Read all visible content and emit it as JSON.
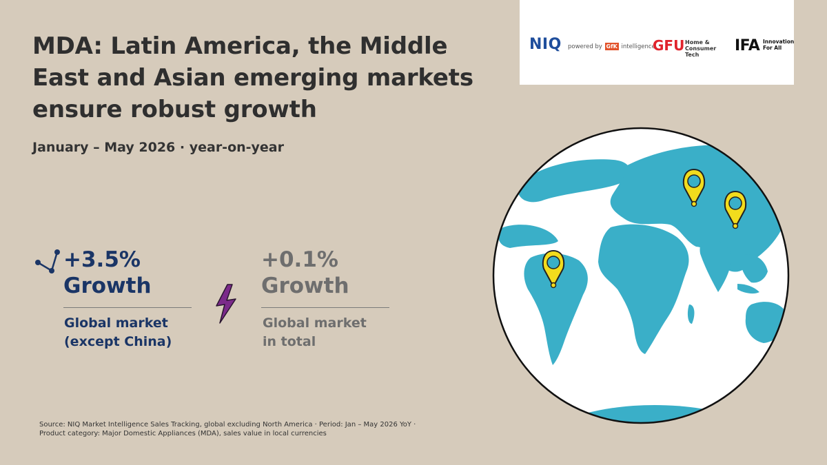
{
  "title": "MDA: Latin America, the Middle East and Asian emerging markets ensure robust growth",
  "subtitle": "January – May 2026 · year-on-year",
  "logos": {
    "niq": "NIQ",
    "niq_powered": "powered by",
    "gfk": "GfK",
    "niq_intelligence": "intelligence",
    "gfu": "GFU",
    "gfu_sub_1": "Home &",
    "gfu_sub_2": "Consumer Tech",
    "ifa": "IFA",
    "ifa_sub_1": "Innovation",
    "ifa_sub_2": "For All"
  },
  "stats": [
    {
      "value": "+3.5%",
      "word": "Growth",
      "label_1": "Global market",
      "label_2": "(except China)",
      "color": "#1a3566"
    },
    {
      "value": "+0.1%",
      "word": "Growth",
      "label_1": "Global market",
      "label_2": "in total",
      "color": "#6e6e6e"
    }
  ],
  "icons": {
    "trend": "trend-up-icon",
    "bolt": "lightning-icon",
    "globe": "globe-icon",
    "pin": "location-pin-icon"
  },
  "colors": {
    "background": "#d6cbbb",
    "ocean": "#ffffff",
    "land": "#3aafc8",
    "pin": "#f2dc1d",
    "accent": "#7b2a8a"
  },
  "source": {
    "line_1": "Source: NIQ Market Intelligence Sales Tracking, global excluding North America · Period: Jan – May 2026 YoY ·",
    "line_2": "Product category: Major Domestic Appliances (MDA), sales value in local currencies"
  }
}
